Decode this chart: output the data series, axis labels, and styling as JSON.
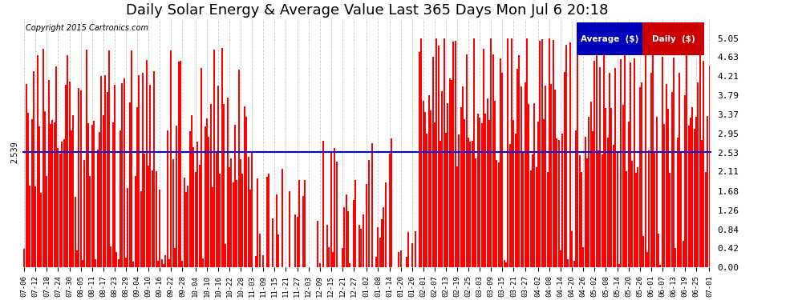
{
  "title": "Daily Solar Energy & Average Value Last 365 Days Mon Jul 6 20:18",
  "copyright": "Copyright 2015 Cartronics.com",
  "average_value": 2.539,
  "average_color": "blue",
  "bar_color": "red",
  "ylim": [
    0.0,
    5.47
  ],
  "yticks": [
    0.0,
    0.42,
    0.84,
    1.26,
    1.68,
    2.11,
    2.53,
    2.95,
    3.37,
    3.79,
    4.21,
    4.63,
    5.05
  ],
  "legend_avg_color": "#0000bb",
  "legend_daily_color": "#cc0000",
  "background_color": "#ffffff",
  "grid_color": "#bbbbbb",
  "title_fontsize": 13,
  "bar_width": 0.85,
  "x_tick_labels": [
    "07-06",
    "07-12",
    "07-18",
    "07-24",
    "07-30",
    "08-05",
    "08-11",
    "08-17",
    "08-23",
    "08-29",
    "09-04",
    "09-10",
    "09-16",
    "09-22",
    "09-28",
    "10-04",
    "10-10",
    "10-16",
    "10-22",
    "10-28",
    "11-03",
    "11-09",
    "11-15",
    "11-21",
    "11-27",
    "12-03",
    "12-09",
    "12-15",
    "12-21",
    "12-27",
    "01-02",
    "01-08",
    "01-14",
    "01-20",
    "01-26",
    "02-01",
    "02-07",
    "02-13",
    "02-19",
    "02-25",
    "03-03",
    "03-09",
    "03-15",
    "03-21",
    "03-27",
    "04-02",
    "04-08",
    "04-14",
    "04-20",
    "04-26",
    "05-02",
    "05-08",
    "05-14",
    "05-20",
    "05-26",
    "06-01",
    "06-07",
    "06-13",
    "06-19",
    "06-25",
    "07-01"
  ],
  "num_days": 365
}
